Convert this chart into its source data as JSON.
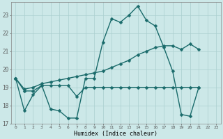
{
  "xlabel": "Humidex (Indice chaleur)",
  "bg_color": "#cce8e8",
  "grid_color": "#aacfcf",
  "line_color": "#1a6b6b",
  "markersize": 2.5,
  "linewidth": 1.0,
  "series": [
    [
      19.5,
      17.7,
      18.6,
      19.1,
      17.8,
      17.7,
      17.3,
      17.3,
      19.5,
      19.5,
      21.5,
      22.8,
      22.6,
      23.0,
      23.5,
      22.7,
      22.4,
      21.2,
      19.9,
      17.5,
      17.4,
      19.0
    ],
    [
      19.5,
      18.8,
      18.8,
      19.1,
      19.1,
      19.1,
      19.1,
      18.5,
      19.0,
      19.0,
      19.0,
      19.0,
      19.0,
      19.0,
      19.0,
      19.0,
      19.0,
      19.0,
      19.0,
      19.0,
      19.0,
      19.0
    ],
    [
      19.5,
      18.9,
      19.0,
      19.2,
      19.3,
      19.4,
      19.5,
      19.6,
      19.7,
      19.8,
      19.9,
      20.1,
      20.3,
      20.5,
      20.8,
      21.0,
      21.2,
      21.3,
      21.3,
      21.1,
      21.4,
      21.1
    ]
  ],
  "ylim": [
    17.0,
    23.7
  ],
  "yticks": [
    17,
    18,
    19,
    20,
    21,
    22,
    23
  ],
  "xlim": [
    -0.5,
    23.5
  ],
  "xtick_labels": [
    "0",
    "1",
    "2",
    "3",
    "4",
    "5",
    "6",
    "7",
    "8",
    "9",
    "10",
    "11",
    "12",
    "13",
    "14",
    "15",
    "16",
    "17",
    "18",
    "19",
    "20",
    "21",
    "22",
    "23"
  ]
}
